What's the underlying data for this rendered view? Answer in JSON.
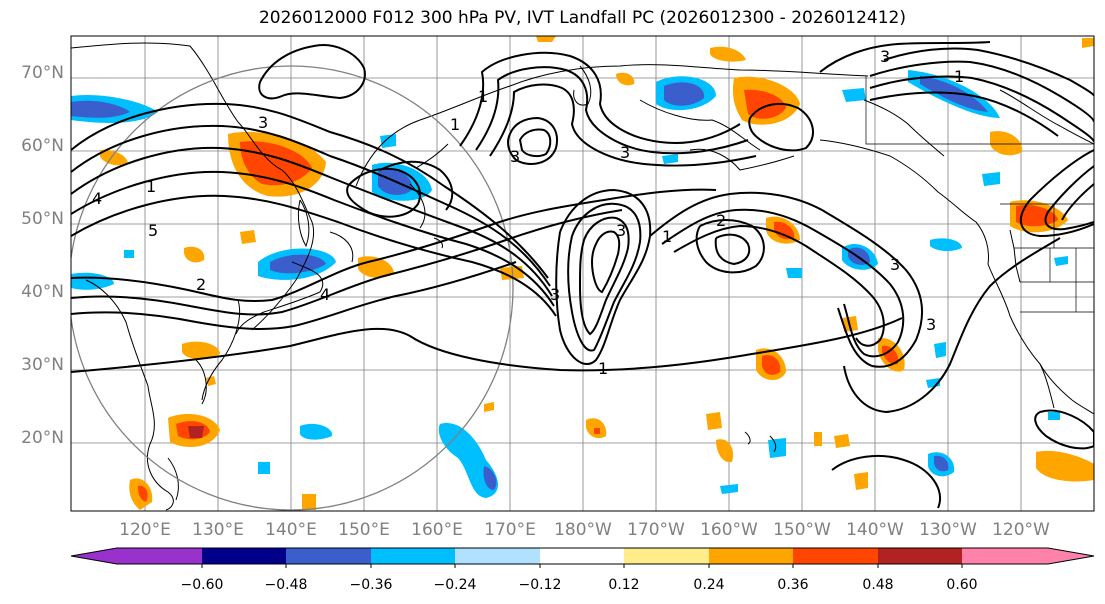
{
  "title": "2026012000 F012 300 hPa PV, IVT Landfall PC (2026012300 - 2026012412)",
  "map": {
    "lat_labels": [
      "70°N",
      "60°N",
      "50°N",
      "40°N",
      "30°N",
      "20°N"
    ],
    "lon_labels": [
      "120°E",
      "130°E",
      "140°E",
      "150°E",
      "160°E",
      "170°E",
      "180°W",
      "170°W",
      "160°W",
      "150°W",
      "140°W",
      "130°W",
      "120°W"
    ],
    "contour_labels": [
      "3",
      "1",
      "5",
      "4",
      "2",
      "4",
      "3",
      "1",
      "3",
      "2",
      "1",
      "3",
      "1",
      "1",
      "3",
      "3",
      "1",
      "3",
      "3"
    ]
  },
  "colorbar": {
    "colors": [
      "#9932cc",
      "#00008b",
      "#3a5fcd",
      "#00bfff",
      "#b0e2ff",
      "#ffffff",
      "#ffec8b",
      "#ffa500",
      "#ff4500",
      "#b22222",
      "#ff82ab"
    ],
    "ticks": [
      "−0.60",
      "−0.48",
      "−0.36",
      "−0.24",
      "−0.12",
      "0.12",
      "0.24",
      "0.36",
      "0.48",
      "0.60"
    ]
  }
}
